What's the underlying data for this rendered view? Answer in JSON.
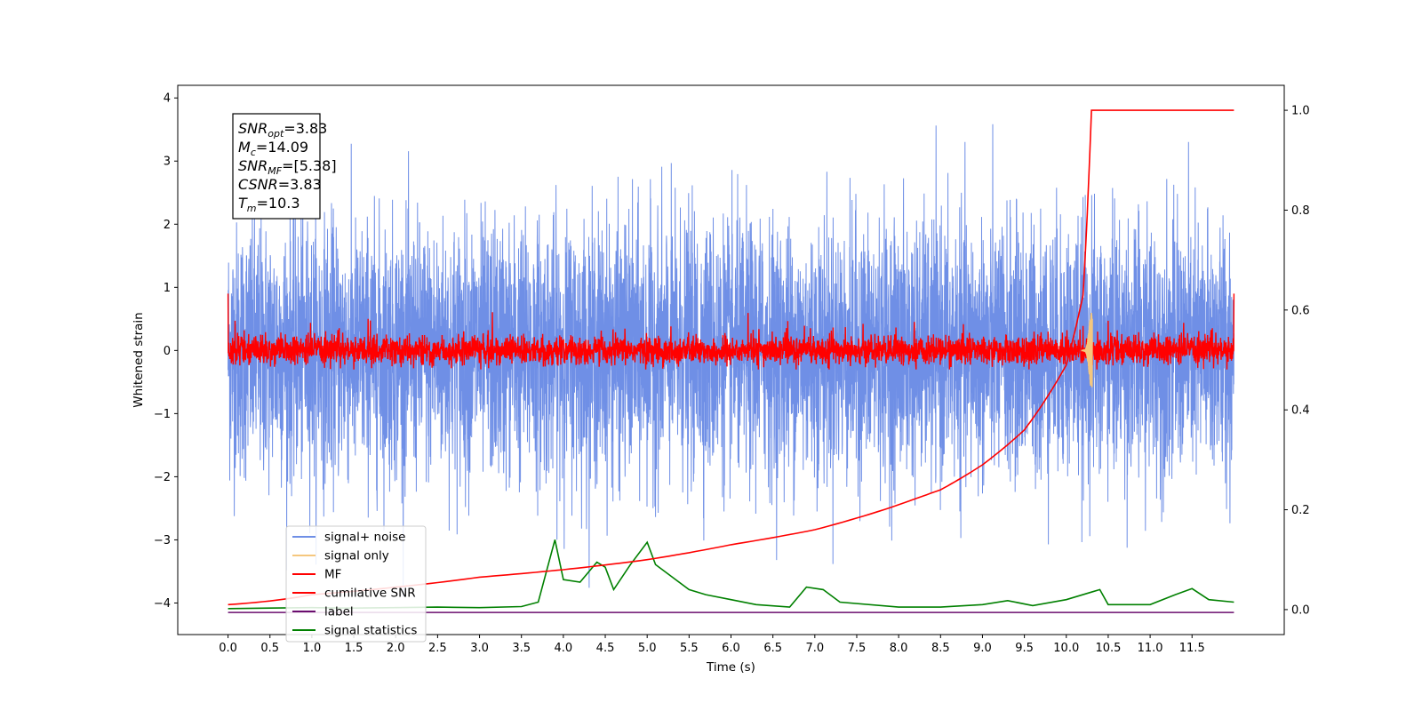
{
  "chart_data": {
    "type": "line",
    "xlabel": "Time (s)",
    "ylabel": "Whitened strain",
    "xlim": [
      -0.6,
      12.6
    ],
    "ylim": [
      -4.5,
      4.2
    ],
    "y2lim": [
      -0.05,
      1.05
    ],
    "x_ticks": [
      "0.0",
      "0.5",
      "1.0",
      "1.5",
      "2.0",
      "2.5",
      "3.0",
      "3.5",
      "4.0",
      "4.5",
      "5.0",
      "5.5",
      "6.0",
      "6.5",
      "7.0",
      "7.5",
      "8.0",
      "8.5",
      "9.0",
      "9.5",
      "10.0",
      "10.5",
      "11.0",
      "11.5"
    ],
    "y_ticks": [
      4,
      3,
      2,
      1,
      0,
      -1,
      -2,
      -3,
      -4
    ],
    "y_tick_labels": [
      "4",
      "3",
      "2",
      "1",
      "0",
      "−1",
      "−2",
      "−3",
      "−4"
    ],
    "y2_ticks": [
      1.0,
      0.8,
      0.6,
      0.4,
      0.2,
      0.0
    ],
    "y2_tick_labels": [
      "1.0",
      "0.8",
      "0.6",
      "0.4",
      "0.2",
      "0.0"
    ],
    "grid": false,
    "legend_position": "lower-left",
    "series": [
      {
        "name": "signal+ noise",
        "color": "#6f8fe6",
        "axis": "left",
        "x_range": [
          0,
          12
        ],
        "approx_std": 1.0,
        "approx_range": [
          -3.9,
          3.8
        ]
      },
      {
        "name": "signal only",
        "color": "#f5c77e",
        "axis": "left",
        "peak_time": 10.3,
        "peak_amplitude": 0.6
      },
      {
        "name": "MF",
        "color": "#ff0000",
        "axis": "left",
        "x_range": [
          0,
          12
        ],
        "approx_range": [
          -0.3,
          0.9
        ]
      },
      {
        "name": "cumilative SNR",
        "color": "#ff0000",
        "axis": "right",
        "points": [
          [
            0.0,
            0.01
          ],
          [
            1.0,
            0.03
          ],
          [
            2.0,
            0.045
          ],
          [
            3.0,
            0.065
          ],
          [
            4.0,
            0.08
          ],
          [
            5.0,
            0.1
          ],
          [
            6.0,
            0.13
          ],
          [
            7.0,
            0.16
          ],
          [
            8.0,
            0.21
          ],
          [
            8.5,
            0.24
          ],
          [
            9.0,
            0.29
          ],
          [
            9.5,
            0.36
          ],
          [
            10.0,
            0.49
          ],
          [
            10.2,
            0.63
          ],
          [
            10.3,
            1.0
          ],
          [
            12.0,
            1.0
          ]
        ]
      },
      {
        "name": "label",
        "color": "#6a0d6e",
        "axis": "left",
        "value": -4.15,
        "x_range": [
          0,
          12
        ]
      },
      {
        "name": "signal statistics",
        "color": "#008000",
        "axis": "right",
        "points": [
          [
            0.0,
            0.002
          ],
          [
            0.5,
            0.003
          ],
          [
            1.0,
            0.004
          ],
          [
            1.5,
            0.003
          ],
          [
            2.0,
            0.004
          ],
          [
            2.5,
            0.005
          ],
          [
            3.0,
            0.004
          ],
          [
            3.5,
            0.006
          ],
          [
            3.7,
            0.015
          ],
          [
            3.9,
            0.14
          ],
          [
            4.0,
            0.06
          ],
          [
            4.2,
            0.055
          ],
          [
            4.4,
            0.095
          ],
          [
            4.5,
            0.085
          ],
          [
            4.6,
            0.04
          ],
          [
            4.8,
            0.09
          ],
          [
            5.0,
            0.135
          ],
          [
            5.1,
            0.09
          ],
          [
            5.3,
            0.065
          ],
          [
            5.5,
            0.04
          ],
          [
            5.7,
            0.03
          ],
          [
            6.0,
            0.02
          ],
          [
            6.3,
            0.01
          ],
          [
            6.7,
            0.005
          ],
          [
            6.9,
            0.045
          ],
          [
            7.1,
            0.04
          ],
          [
            7.3,
            0.015
          ],
          [
            8.0,
            0.005
          ],
          [
            8.5,
            0.005
          ],
          [
            9.0,
            0.01
          ],
          [
            9.3,
            0.018
          ],
          [
            9.6,
            0.008
          ],
          [
            10.0,
            0.02
          ],
          [
            10.3,
            0.035
          ],
          [
            10.4,
            0.04
          ],
          [
            10.5,
            0.01
          ],
          [
            11.0,
            0.01
          ],
          [
            11.3,
            0.03
          ],
          [
            11.5,
            0.042
          ],
          [
            11.7,
            0.02
          ],
          [
            12.0,
            0.015
          ]
        ]
      }
    ],
    "annotations": [
      {
        "base": "SNR",
        "sub": "opt",
        "value": "=3.83"
      },
      {
        "base": "M",
        "sub": "c",
        "value": "=14.09"
      },
      {
        "base": "SNR",
        "sub": "MF",
        "value": "=[5.38]"
      },
      {
        "base": "CSNR",
        "sub": "",
        "value": "=3.83"
      },
      {
        "base": "T",
        "sub": "m",
        "value": "=10.3"
      }
    ]
  }
}
